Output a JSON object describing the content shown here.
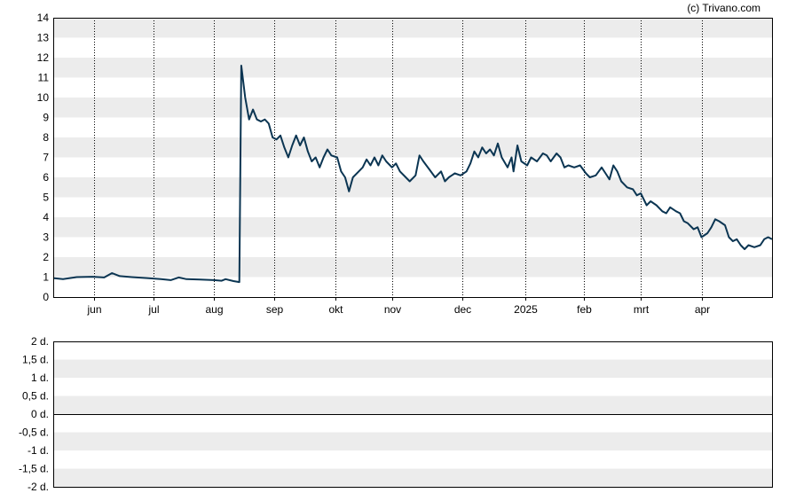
{
  "copyright": "(c) Trivano.com",
  "chart_data": [
    {
      "type": "line",
      "ylim": [
        0,
        14
      ],
      "y_ticks": [
        "0",
        "1",
        "2",
        "3",
        "4",
        "5",
        "6",
        "7",
        "8",
        "9",
        "10",
        "11",
        "12",
        "13",
        "14"
      ],
      "x_ticks": [
        "jun",
        "jul",
        "aug",
        "sep",
        "okt",
        "nov",
        "dec",
        "2025",
        "feb",
        "mrt",
        "apr"
      ],
      "grid": "alternating horizontal bands, dotted vertical lines at month ticks",
      "colors": {
        "line": "#0b3552",
        "band": "#ececec",
        "frame": "#000000"
      },
      "series": [
        {
          "values": [
            [
              0,
              0.95
            ],
            [
              5,
              0.9
            ],
            [
              12,
              1.0
            ],
            [
              20,
              1.02
            ],
            [
              26,
              0.98
            ],
            [
              30,
              1.2
            ],
            [
              34,
              1.05
            ],
            [
              40,
              1.0
            ],
            [
              48,
              0.95
            ],
            [
              55,
              0.9
            ],
            [
              60,
              0.85
            ],
            [
              64,
              0.98
            ],
            [
              68,
              0.9
            ],
            [
              75,
              0.88
            ],
            [
              82,
              0.85
            ],
            [
              86,
              0.82
            ],
            [
              88,
              0.9
            ],
            [
              92,
              0.8
            ],
            [
              95,
              0.75
            ],
            [
              96,
              11.6
            ],
            [
              98,
              10.0
            ],
            [
              100,
              8.9
            ],
            [
              102,
              9.4
            ],
            [
              104,
              8.9
            ],
            [
              106,
              8.8
            ],
            [
              108,
              8.9
            ],
            [
              110,
              8.7
            ],
            [
              112,
              8.0
            ],
            [
              114,
              7.9
            ],
            [
              116,
              8.1
            ],
            [
              118,
              7.5
            ],
            [
              120,
              7.0
            ],
            [
              122,
              7.6
            ],
            [
              124,
              8.1
            ],
            [
              126,
              7.6
            ],
            [
              128,
              8.0
            ],
            [
              130,
              7.3
            ],
            [
              132,
              6.8
            ],
            [
              134,
              7.0
            ],
            [
              136,
              6.5
            ],
            [
              138,
              7.0
            ],
            [
              140,
              7.4
            ],
            [
              142,
              7.1
            ],
            [
              145,
              7.0
            ],
            [
              147,
              6.3
            ],
            [
              149,
              6.0
            ],
            [
              151,
              5.3
            ],
            [
              153,
              6.0
            ],
            [
              156,
              6.3
            ],
            [
              158,
              6.5
            ],
            [
              160,
              6.9
            ],
            [
              162,
              6.6
            ],
            [
              164,
              7.0
            ],
            [
              166,
              6.6
            ],
            [
              168,
              7.1
            ],
            [
              170,
              6.8
            ],
            [
              173,
              6.5
            ],
            [
              175,
              6.7
            ],
            [
              177,
              6.3
            ],
            [
              180,
              6.0
            ],
            [
              182,
              5.8
            ],
            [
              185,
              6.1
            ],
            [
              187,
              7.1
            ],
            [
              189,
              6.8
            ],
            [
              192,
              6.4
            ],
            [
              195,
              6.0
            ],
            [
              198,
              6.3
            ],
            [
              200,
              5.8
            ],
            [
              202,
              6.0
            ],
            [
              205,
              6.2
            ],
            [
              208,
              6.1
            ],
            [
              211,
              6.3
            ],
            [
              213,
              6.7
            ],
            [
              215,
              7.3
            ],
            [
              217,
              7.0
            ],
            [
              219,
              7.5
            ],
            [
              221,
              7.2
            ],
            [
              223,
              7.4
            ],
            [
              225,
              7.1
            ],
            [
              227,
              7.7
            ],
            [
              229,
              7.0
            ],
            [
              232,
              6.5
            ],
            [
              234,
              7.0
            ],
            [
              235,
              6.3
            ],
            [
              237,
              7.6
            ],
            [
              239,
              6.8
            ],
            [
              242,
              6.6
            ],
            [
              244,
              7.0
            ],
            [
              247,
              6.8
            ],
            [
              250,
              7.2
            ],
            [
              252,
              7.1
            ],
            [
              254,
              6.8
            ],
            [
              257,
              7.2
            ],
            [
              259,
              7.0
            ],
            [
              261,
              6.5
            ],
            [
              263,
              6.6
            ],
            [
              266,
              6.5
            ],
            [
              269,
              6.6
            ],
            [
              272,
              6.2
            ],
            [
              274,
              6.0
            ],
            [
              277,
              6.1
            ],
            [
              280,
              6.5
            ],
            [
              282,
              6.2
            ],
            [
              284,
              5.9
            ],
            [
              286,
              6.6
            ],
            [
              288,
              6.3
            ],
            [
              290,
              5.8
            ],
            [
              293,
              5.5
            ],
            [
              296,
              5.4
            ],
            [
              298,
              5.1
            ],
            [
              300,
              5.2
            ],
            [
              303,
              4.6
            ],
            [
              305,
              4.8
            ],
            [
              308,
              4.6
            ],
            [
              311,
              4.3
            ],
            [
              313,
              4.2
            ],
            [
              315,
              4.5
            ],
            [
              318,
              4.3
            ],
            [
              320,
              4.2
            ],
            [
              322,
              3.8
            ],
            [
              324,
              3.7
            ],
            [
              327,
              3.4
            ],
            [
              329,
              3.5
            ],
            [
              331,
              3.0
            ],
            [
              334,
              3.2
            ],
            [
              336,
              3.5
            ],
            [
              338,
              3.9
            ],
            [
              340,
              3.8
            ],
            [
              343,
              3.6
            ],
            [
              345,
              3.0
            ],
            [
              347,
              2.8
            ],
            [
              349,
              2.9
            ],
            [
              351,
              2.6
            ],
            [
              353,
              2.4
            ],
            [
              355,
              2.6
            ],
            [
              358,
              2.5
            ],
            [
              361,
              2.6
            ],
            [
              363,
              2.9
            ],
            [
              365,
              3.0
            ],
            [
              367,
              2.9
            ]
          ]
        }
      ]
    },
    {
      "type": "line",
      "y_ticks": [
        "2 d.",
        "1,5 d.",
        "1 d.",
        "0,5 d.",
        "0 d.",
        "-0,5 d.",
        "-1 d.",
        "-1,5 d.",
        "-2 d."
      ],
      "ylim": [
        -2,
        2
      ],
      "series": []
    }
  ]
}
